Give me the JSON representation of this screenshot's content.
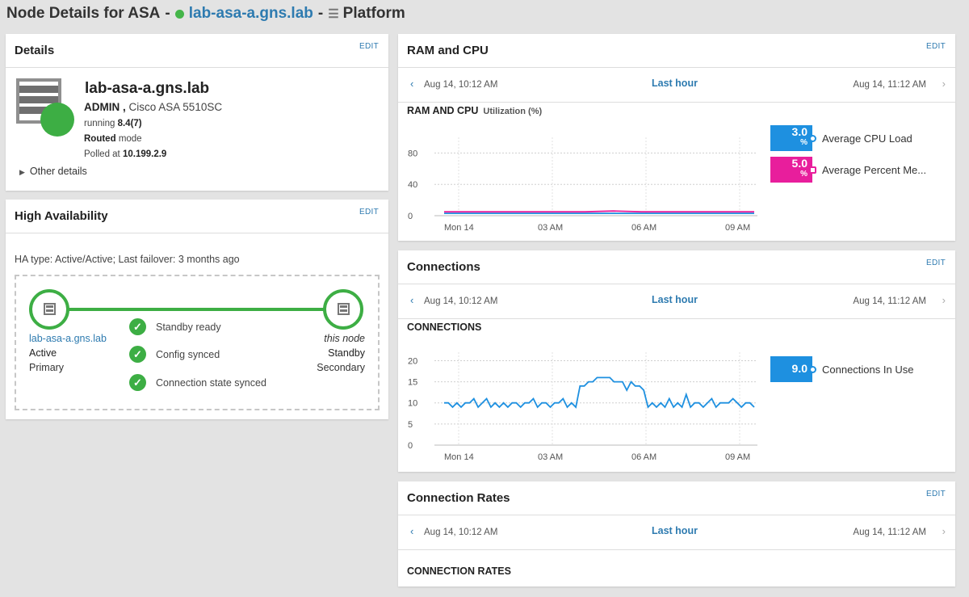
{
  "header": {
    "title_prefix": "Node Details for ASA",
    "dash": "-",
    "node_name": "lab-asa-a.gns.lab",
    "section": "Platform",
    "status_color": "#44b549"
  },
  "details": {
    "title": "Details",
    "edit": "EDIT",
    "node_name": "lab-asa-a.gns.lab",
    "context": "ADMIN ,",
    "model": "Cisco ASA 5510SC",
    "running_label": "running",
    "version": "8.4(7)",
    "mode_value": "Routed",
    "mode_label": "mode",
    "polled_label": "Polled at",
    "polled_ip": "10.199.2.9",
    "other_details": "Other details"
  },
  "ha": {
    "title": "High Availability",
    "edit": "EDIT",
    "ha_type": "HA type: Active/Active; Last failover: 3 months ago",
    "left_node": {
      "name": "lab-asa-a.gns.lab",
      "role": "Active",
      "priority": "Primary"
    },
    "right_node": {
      "name": "this node",
      "role": "Standby",
      "priority": "Secondary"
    },
    "checks": [
      "Standby ready",
      "Config synced",
      "Connection state synced"
    ]
  },
  "time_nav": {
    "from": "Aug 14, 10:12 AM",
    "range": "Last hour",
    "to": "Aug 14, 11:12 AM"
  },
  "ramcpu": {
    "title": "RAM and CPU",
    "edit": "EDIT",
    "chart_title": "RAM AND CPU",
    "chart_subtitle": "Utilization (%)",
    "legend": [
      {
        "value": "3.0",
        "unit": "%",
        "label": "Average CPU Load",
        "color": "#1e90e0"
      },
      {
        "value": "5.0",
        "unit": "%",
        "label": "Average Percent Me...",
        "color": "#e81e9c"
      }
    ]
  },
  "connections": {
    "title": "Connections",
    "edit": "EDIT",
    "chart_title": "CONNECTIONS",
    "legend": [
      {
        "value": "9.0",
        "label": "Connections In Use",
        "color": "#1e90e0"
      }
    ]
  },
  "rates": {
    "title": "Connection Rates",
    "edit": "EDIT",
    "chart_title": "CONNECTION RATES"
  },
  "chart_data": [
    {
      "type": "line",
      "title": "RAM AND CPU",
      "subtitle": "Utilization (%)",
      "x_ticks": [
        "Mon 14",
        "03 AM",
        "06 AM",
        "09 AM"
      ],
      "y_ticks": [
        0,
        40,
        80
      ],
      "ylim": [
        0,
        100
      ],
      "grid": true,
      "series": [
        {
          "name": "Average CPU Load",
          "color": "#1e90e0",
          "values": [
            3,
            3,
            3,
            3,
            3,
            3,
            3,
            3,
            3,
            3,
            3,
            3
          ]
        },
        {
          "name": "Average Percent Me...",
          "color": "#e81e9c",
          "values": [
            5,
            5,
            5,
            5,
            5,
            5,
            6,
            5,
            5,
            5,
            5,
            5
          ]
        }
      ]
    },
    {
      "type": "line",
      "title": "CONNECTIONS",
      "x_ticks": [
        "Mon 14",
        "03 AM",
        "06 AM",
        "09 AM"
      ],
      "y_ticks": [
        0,
        5,
        10,
        15,
        20
      ],
      "ylim": [
        0,
        22
      ],
      "grid": true,
      "series": [
        {
          "name": "Connections In Use",
          "color": "#1e90e0",
          "values": [
            10,
            10,
            9,
            10,
            9,
            10,
            10,
            11,
            9,
            10,
            11,
            9,
            10,
            9,
            10,
            9,
            10,
            10,
            9,
            10,
            10,
            11,
            9,
            10,
            10,
            9,
            10,
            10,
            11,
            9,
            10,
            9,
            14,
            14,
            15,
            15,
            16,
            16,
            16,
            16,
            15,
            15,
            15,
            13,
            15,
            14,
            14,
            13,
            9,
            10,
            9,
            10,
            9,
            11,
            9,
            10,
            9,
            12,
            9,
            10,
            10,
            9,
            10,
            11,
            9,
            10,
            10,
            10,
            11,
            10,
            9,
            10,
            10,
            9
          ]
        }
      ]
    }
  ]
}
